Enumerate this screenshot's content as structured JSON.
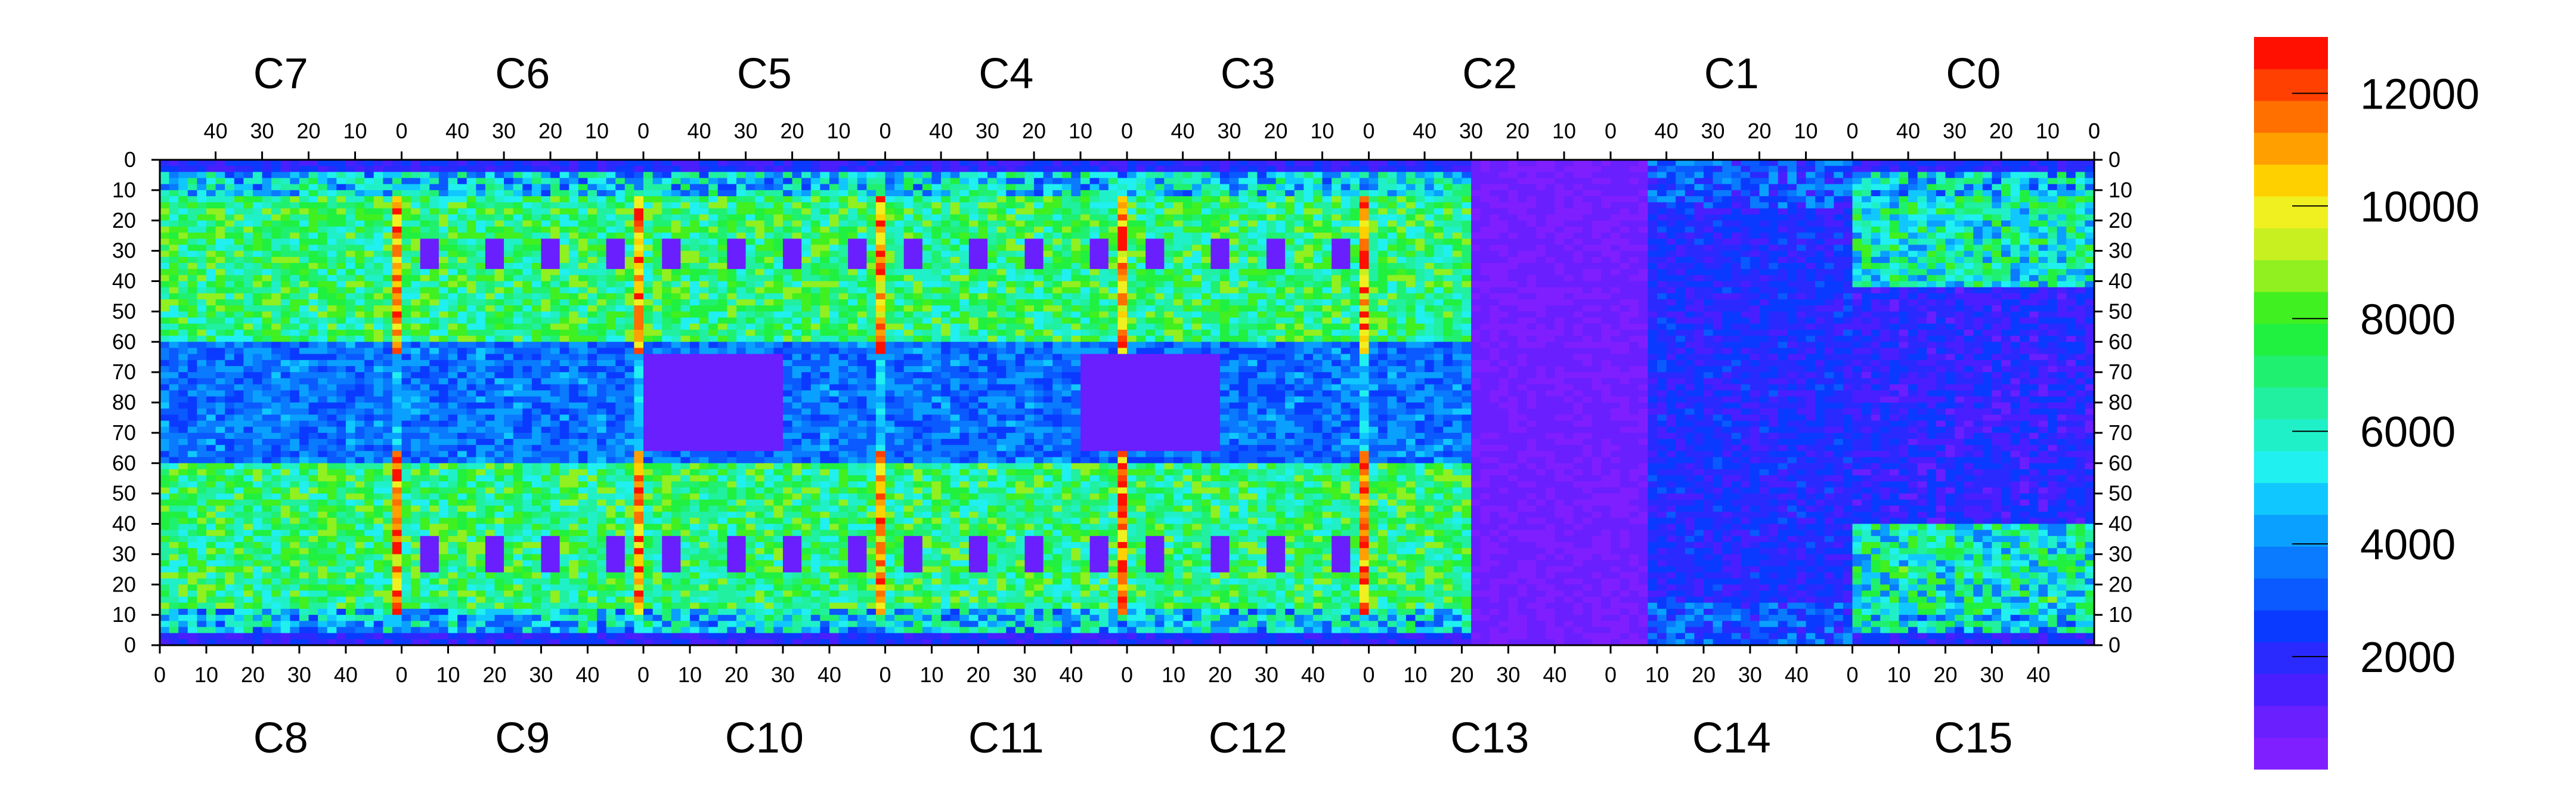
{
  "chart_data": {
    "type": "heatmap",
    "title": "",
    "xlabel": "",
    "ylabel": "",
    "top_chip_labels": [
      "C7",
      "C6",
      "C5",
      "C4",
      "C3",
      "C2",
      "C1",
      "C0"
    ],
    "bottom_chip_labels": [
      "C8",
      "C9",
      "C10",
      "C11",
      "C12",
      "C13",
      "C14",
      "C15"
    ],
    "top_x_tick_labels": [
      "40",
      "30",
      "20",
      "10",
      "0"
    ],
    "bottom_x_tick_labels": [
      "0",
      "10",
      "20",
      "30",
      "40"
    ],
    "top_x_tick_values": [
      40,
      30,
      20,
      10,
      0
    ],
    "bottom_x_tick_values": [
      0,
      10,
      20,
      30,
      40
    ],
    "chip_columns": 52,
    "rows_per_half": 80,
    "y_tick_labels_top_half": [
      "0",
      "10",
      "20",
      "30",
      "40",
      "50",
      "60",
      "70",
      "80"
    ],
    "y_tick_labels_bottom_half": [
      "70",
      "60",
      "50",
      "40",
      "30",
      "20",
      "10",
      "0"
    ],
    "colorbar": {
      "min": 0,
      "max": 13000,
      "ticks": [
        2000,
        4000,
        6000,
        8000,
        10000,
        12000
      ],
      "tick_labels": [
        "2000",
        "4000",
        "6000",
        "8000",
        "10000",
        "12000"
      ],
      "levels": 20,
      "colors": [
        "#7f1fff",
        "#6a1fff",
        "#4a1fff",
        "#2a2aff",
        "#0a3aff",
        "#0a5aff",
        "#0a7aff",
        "#0aa0ff",
        "#10c8ff",
        "#20f0f0",
        "#20f0c8",
        "#20f0a0",
        "#20f070",
        "#20f040",
        "#40f020",
        "#90f020",
        "#c8f020",
        "#f0f020",
        "#ffd000",
        "#ffa000",
        "#ff7000",
        "#ff4000",
        "#ff1000"
      ]
    },
    "grid": false,
    "legend_position": "right"
  }
}
